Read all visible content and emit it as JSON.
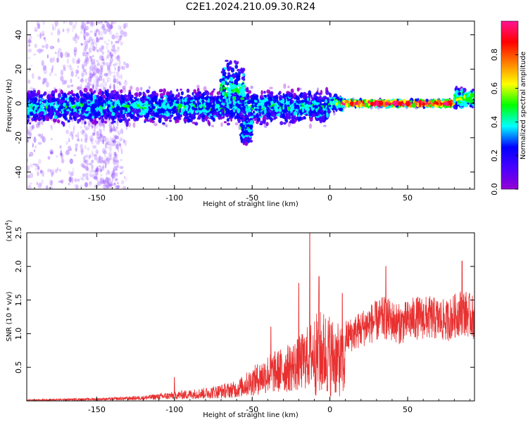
{
  "title": "C2E1.2024.210.09.30.R24",
  "colors": {
    "snr_line": "#e83030",
    "spectrum_colormap": [
      "#ffffff",
      "#9400d3",
      "#4b00ff",
      "#0000ff",
      "#00ffff",
      "#00ff00",
      "#ffff00",
      "#ff8000",
      "#ff0000",
      "#ff1493"
    ]
  },
  "chart_data": [
    {
      "type": "heatmap",
      "name": "spectrogram",
      "xlabel": "Height of straight line (km)",
      "ylabel": "Frequency (Hz)",
      "xlim": [
        -195,
        93
      ],
      "ylim": [
        -50,
        48
      ],
      "xticks": [
        -150,
        -100,
        -50,
        0,
        50
      ],
      "yticks": [
        -40,
        -20,
        0,
        20,
        40
      ],
      "grid": false,
      "colorbar": {
        "label": "Normalized spectral amplitude",
        "range": [
          0.0,
          1.0
        ],
        "ticks": [
          0.0,
          0.2,
          0.4,
          0.6,
          0.8
        ]
      },
      "bands": [
        {
          "x_range": [
            -195,
            0
          ],
          "center_hz": -2,
          "halfwidth_hz": 8,
          "level": 0.35
        },
        {
          "x_range": [
            -70,
            -55
          ],
          "center_hz": 8,
          "halfwidth_hz": 14,
          "level": 0.4
        },
        {
          "x_range": [
            -57,
            -50
          ],
          "center_hz": -15,
          "halfwidth_hz": 8,
          "level": 0.35
        },
        {
          "x_range": [
            0,
            8
          ],
          "center_hz": 0,
          "halfwidth_hz": 4,
          "level": 0.45
        },
        {
          "x_range": [
            8,
            80
          ],
          "center_hz": 0,
          "halfwidth_hz": 1.5,
          "level": 0.9
        },
        {
          "x_range": [
            80,
            93
          ],
          "center_hz": 3,
          "halfwidth_hz": 5,
          "level": 0.5
        }
      ]
    },
    {
      "type": "line",
      "name": "snr",
      "xlabel": "Height of straight line (km)",
      "ylabel": "SNR (10 * v/v)",
      "y_multiplier_label": "(x10",
      "y_multiplier_exp": "4",
      "y_multiplier_close": ")",
      "xlim": [
        -195,
        93
      ],
      "ylim": [
        0,
        2.5
      ],
      "xticks": [
        -150,
        -100,
        -50,
        0,
        50
      ],
      "yticks": [
        0.5,
        1.0,
        1.5,
        2.0,
        2.5
      ],
      "ytick_labels": [
        "0.5",
        "1.0",
        "1.5",
        "2.0",
        "2.5"
      ],
      "grid": false,
      "envelope": {
        "x": [
          -195,
          -160,
          -140,
          -120,
          -100,
          -80,
          -60,
          -50,
          -40,
          -30,
          -20,
          -12,
          -5,
          0,
          5,
          10,
          15,
          25,
          35,
          45,
          55,
          65,
          75,
          85,
          93
        ],
        "y": [
          0.02,
          0.04,
          0.05,
          0.08,
          0.14,
          0.2,
          0.3,
          0.5,
          0.7,
          0.8,
          0.95,
          1.2,
          1.3,
          1.25,
          1.1,
          1.0,
          1.05,
          1.2,
          1.3,
          1.2,
          1.3,
          1.3,
          1.25,
          1.4,
          1.3
        ]
      },
      "peaks": [
        {
          "x": -13,
          "y": 2.5
        },
        {
          "x": -20,
          "y": 1.75
        },
        {
          "x": -7,
          "y": 1.85
        },
        {
          "x": 8,
          "y": 1.6
        },
        {
          "x": 36,
          "y": 2.0
        },
        {
          "x": 85,
          "y": 2.08
        },
        {
          "x": -100,
          "y": 0.35
        },
        {
          "x": -38,
          "y": 1.1
        }
      ]
    }
  ]
}
